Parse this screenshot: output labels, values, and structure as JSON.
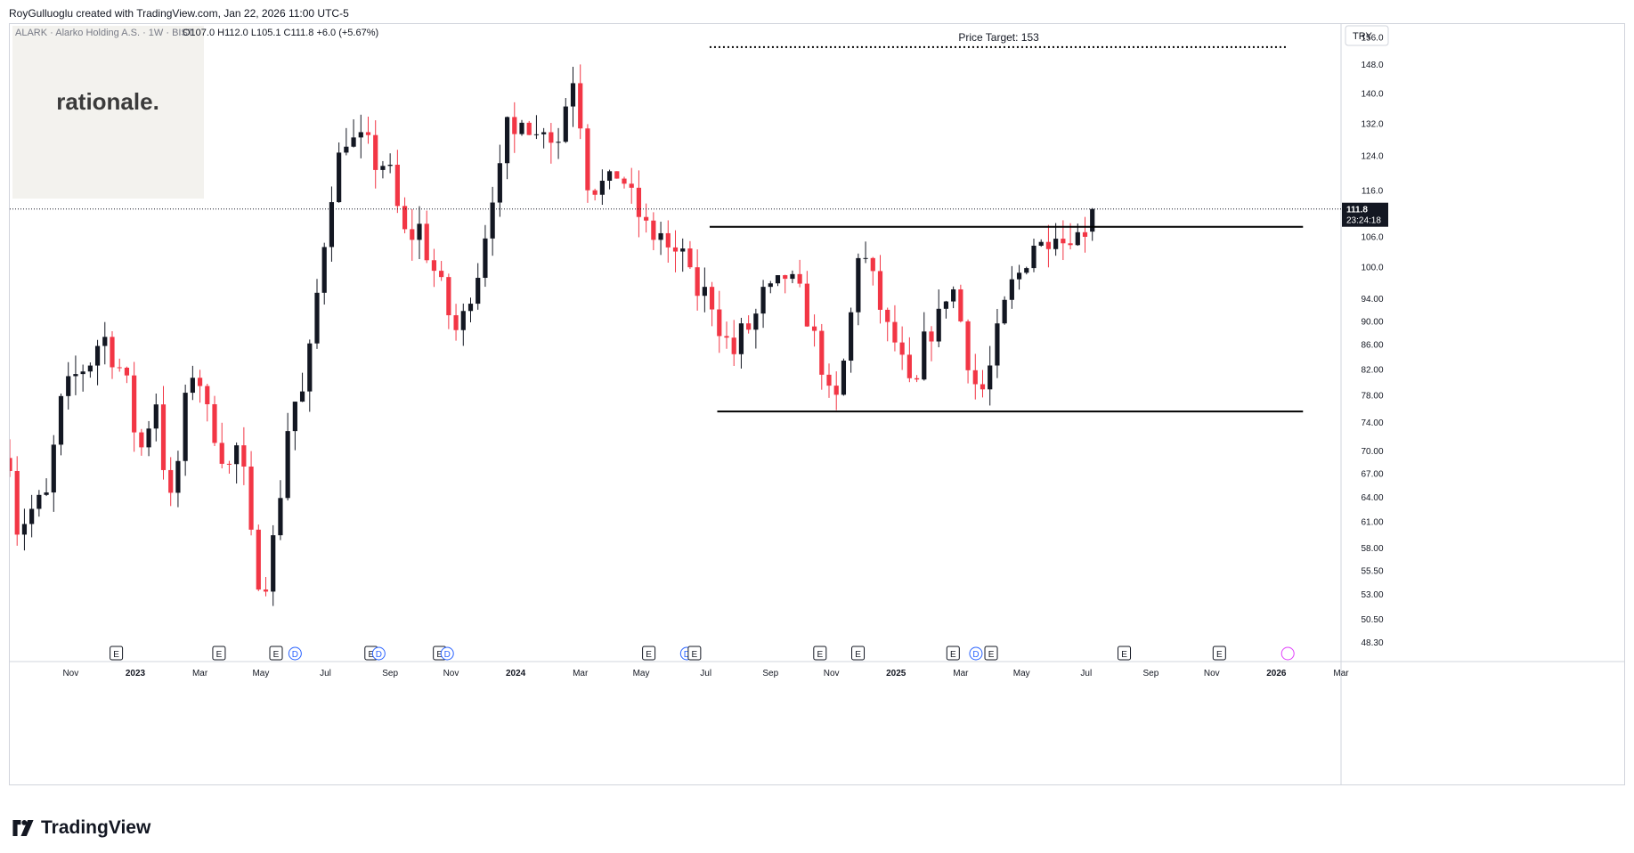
{
  "header": {
    "credit": "RoyGulluoglu created with TradingView.com, Jan 22, 2026 11:00 UTC-5"
  },
  "brand": {
    "name": "TradingView"
  },
  "watermark": {
    "text": "rationale."
  },
  "currency": "TRY",
  "legend": {
    "symbol": "ALARK · Alarko Holding A.S. · 1W · BIST",
    "ohlc": "O107.0  H112.0  L105.1  C111.8  +6.0 (+5.67%)"
  },
  "last_price": {
    "value": "111.8",
    "countdown": "23:24:18"
  },
  "event_markers": [
    {
      "letter": "E",
      "time": 2022.95
    },
    {
      "letter": "E",
      "time": 2023.22
    },
    {
      "letter": "E",
      "time": 2023.37
    },
    {
      "letter": "D",
      "time": 2023.42
    },
    {
      "letter": "E",
      "time": 2023.62
    },
    {
      "letter": "D",
      "time": 2023.64
    },
    {
      "letter": "E",
      "time": 2023.8
    },
    {
      "letter": "D",
      "time": 2023.82
    },
    {
      "letter": "E",
      "time": 2024.35
    },
    {
      "letter": "D",
      "time": 2024.45
    },
    {
      "letter": "E",
      "time": 2024.47
    },
    {
      "letter": "E",
      "time": 2024.8
    },
    {
      "letter": "E",
      "time": 2024.9
    },
    {
      "letter": "E",
      "time": 2025.15
    },
    {
      "letter": "D",
      "time": 2025.21
    },
    {
      "letter": "E",
      "time": 2025.25
    },
    {
      "letter": "E",
      "time": 2025.6
    },
    {
      "letter": "E",
      "time": 2025.85
    }
  ],
  "colors": {
    "up": "#131722",
    "down": "#f23645",
    "line": "#000000",
    "price_tag": "#131722"
  },
  "chart_data": {
    "type": "candlestick",
    "scale": "log",
    "interval": "1W",
    "y_ticks": [
      "48.30",
      "50.50",
      "53.00",
      "55.50",
      "58.00",
      "61.00",
      "64.00",
      "67.00",
      "70.00",
      "74.00",
      "78.00",
      "82.00",
      "86.00",
      "90.00",
      "94.00",
      "100.0",
      "106.0",
      "116.0",
      "124.0",
      "132.0",
      "140.0",
      "148.0",
      "156.0"
    ],
    "x_ticks": [
      {
        "label": "Nov",
        "time": 2022.83
      },
      {
        "label": "2023",
        "time": 2023.0,
        "bold": true
      },
      {
        "label": "Mar",
        "time": 2023.17
      },
      {
        "label": "May",
        "time": 2023.33
      },
      {
        "label": "Jul",
        "time": 2023.5
      },
      {
        "label": "Sep",
        "time": 2023.67
      },
      {
        "label": "Nov",
        "time": 2023.83
      },
      {
        "label": "2024",
        "time": 2024.0,
        "bold": true
      },
      {
        "label": "Mar",
        "time": 2024.17
      },
      {
        "label": "May",
        "time": 2024.33
      },
      {
        "label": "Jul",
        "time": 2024.5
      },
      {
        "label": "Sep",
        "time": 2024.67
      },
      {
        "label": "Nov",
        "time": 2024.83
      },
      {
        "label": "2025",
        "time": 2025.0,
        "bold": true
      },
      {
        "label": "Mar",
        "time": 2025.17
      },
      {
        "label": "May",
        "time": 2025.33
      },
      {
        "label": "Jul",
        "time": 2025.5
      },
      {
        "label": "Sep",
        "time": 2025.67
      },
      {
        "label": "Nov",
        "time": 2025.83
      },
      {
        "label": "2026",
        "time": 2026.0,
        "bold": true
      },
      {
        "label": "Mar",
        "time": 2026.17
      }
    ],
    "y_range": [
      46.5,
      160
    ],
    "x_range": [
      2022.67,
      2026.17
    ],
    "annotations": {
      "price_target": {
        "label": "Price Target: 153",
        "price": 153,
        "from": 2024.51,
        "to": 2026.03
      },
      "resistance": {
        "price": 108,
        "from": 2024.51,
        "to": 2026.07
      },
      "support": {
        "price": 75.5,
        "from": 2024.53,
        "to": 2026.07
      },
      "last_price_line": 111.8
    },
    "close_path": [
      [
        2022.67,
        69
      ],
      [
        2022.69,
        60
      ],
      [
        2022.72,
        62
      ],
      [
        2022.74,
        63
      ],
      [
        2022.77,
        64
      ],
      [
        2022.8,
        76
      ],
      [
        2022.83,
        80
      ],
      [
        2022.86,
        82
      ],
      [
        2022.88,
        83
      ],
      [
        2022.9,
        86
      ],
      [
        2022.92,
        87
      ],
      [
        2022.94,
        84
      ],
      [
        2022.96,
        82
      ],
      [
        2022.98,
        79
      ],
      [
        2023.0,
        72
      ],
      [
        2023.02,
        70
      ],
      [
        2023.04,
        75
      ],
      [
        2023.06,
        78
      ],
      [
        2023.08,
        64
      ],
      [
        2023.1,
        63
      ],
      [
        2023.12,
        72
      ],
      [
        2023.14,
        80
      ],
      [
        2023.16,
        83
      ],
      [
        2023.18,
        77
      ],
      [
        2023.2,
        73
      ],
      [
        2023.22,
        72
      ],
      [
        2023.24,
        66
      ],
      [
        2023.26,
        71
      ],
      [
        2023.28,
        69
      ],
      [
        2023.3,
        60
      ],
      [
        2023.32,
        55
      ],
      [
        2023.34,
        54
      ],
      [
        2023.36,
        58
      ],
      [
        2023.38,
        64
      ],
      [
        2023.4,
        73
      ],
      [
        2023.42,
        77
      ],
      [
        2023.44,
        78
      ],
      [
        2023.46,
        85
      ],
      [
        2023.48,
        96
      ],
      [
        2023.5,
        107
      ],
      [
        2023.52,
        118
      ],
      [
        2023.54,
        125
      ],
      [
        2023.56,
        130
      ],
      [
        2023.58,
        126
      ],
      [
        2023.6,
        128
      ],
      [
        2023.62,
        125
      ],
      [
        2023.64,
        120
      ],
      [
        2023.66,
        124
      ],
      [
        2023.68,
        115
      ],
      [
        2023.7,
        108
      ],
      [
        2023.72,
        104
      ],
      [
        2023.74,
        110
      ],
      [
        2023.76,
        104
      ],
      [
        2023.78,
        100
      ],
      [
        2023.8,
        97
      ],
      [
        2023.82,
        92
      ],
      [
        2023.84,
        88
      ],
      [
        2023.86,
        90
      ],
      [
        2023.88,
        95
      ],
      [
        2023.9,
        99
      ],
      [
        2023.92,
        107
      ],
      [
        2023.94,
        116
      ],
      [
        2023.96,
        120
      ],
      [
        2023.98,
        132
      ],
      [
        2024.0,
        128
      ],
      [
        2024.02,
        137
      ],
      [
        2024.04,
        130
      ],
      [
        2024.06,
        128
      ],
      [
        2024.08,
        134
      ],
      [
        2024.1,
        126
      ],
      [
        2024.12,
        129
      ],
      [
        2024.14,
        143
      ],
      [
        2024.16,
        146
      ],
      [
        2024.18,
        120
      ],
      [
        2024.2,
        116
      ],
      [
        2024.22,
        118
      ],
      [
        2024.24,
        116
      ],
      [
        2024.26,
        120
      ],
      [
        2024.28,
        119
      ],
      [
        2024.3,
        115
      ],
      [
        2024.32,
        111
      ],
      [
        2024.34,
        108
      ],
      [
        2024.36,
        106
      ],
      [
        2024.38,
        107
      ],
      [
        2024.4,
        103
      ],
      [
        2024.42,
        101
      ],
      [
        2024.44,
        104
      ],
      [
        2024.46,
        97
      ],
      [
        2024.48,
        95
      ],
      [
        2024.5,
        95
      ],
      [
        2024.52,
        93
      ],
      [
        2024.54,
        88
      ],
      [
        2024.56,
        86
      ],
      [
        2024.58,
        84
      ],
      [
        2024.6,
        90
      ],
      [
        2024.62,
        88
      ],
      [
        2024.64,
        93
      ],
      [
        2024.66,
        96
      ],
      [
        2024.68,
        94
      ],
      [
        2024.7,
        99
      ],
      [
        2024.72,
        97
      ],
      [
        2024.74,
        96
      ],
      [
        2024.76,
        92
      ],
      [
        2024.78,
        88
      ],
      [
        2024.8,
        84
      ],
      [
        2024.82,
        78
      ],
      [
        2024.84,
        76
      ],
      [
        2024.86,
        82
      ],
      [
        2024.88,
        90
      ],
      [
        2024.9,
        103
      ],
      [
        2024.92,
        101
      ],
      [
        2024.94,
        97
      ],
      [
        2024.96,
        92
      ],
      [
        2024.98,
        88
      ],
      [
        2025.0,
        86
      ],
      [
        2025.02,
        82
      ],
      [
        2025.04,
        78
      ],
      [
        2025.06,
        80
      ],
      [
        2025.08,
        89
      ],
      [
        2025.1,
        88
      ],
      [
        2025.12,
        92
      ],
      [
        2025.14,
        97
      ],
      [
        2025.16,
        94
      ],
      [
        2025.18,
        86
      ],
      [
        2025.2,
        81
      ],
      [
        2025.22,
        78
      ],
      [
        2025.24,
        80
      ],
      [
        2025.26,
        86
      ],
      [
        2025.28,
        91
      ],
      [
        2025.3,
        96
      ],
      [
        2025.32,
        98
      ],
      [
        2025.34,
        101
      ],
      [
        2025.36,
        105
      ],
      [
        2025.38,
        104
      ],
      [
        2025.4,
        106
      ],
      [
        2025.42,
        108
      ],
      [
        2025.44,
        105
      ],
      [
        2025.46,
        107
      ],
      [
        2025.48,
        106
      ],
      [
        2025.5,
        108
      ],
      [
        2025.52,
        111.8
      ]
    ]
  }
}
